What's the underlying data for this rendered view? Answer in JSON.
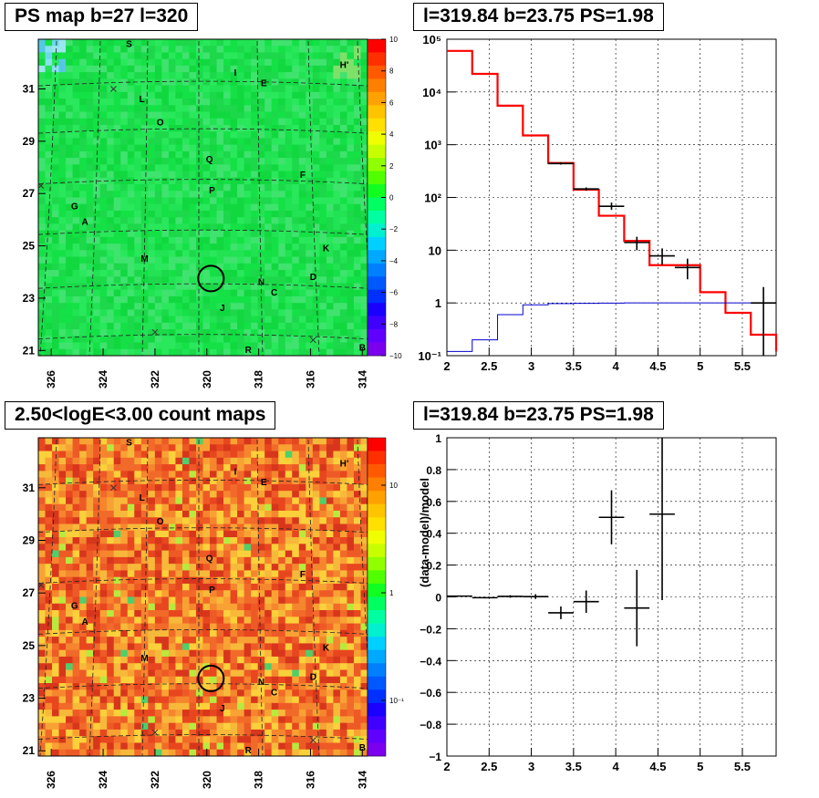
{
  "panels": {
    "ps_map": {
      "title": "PS map b=27 l=320"
    },
    "spectrum": {
      "title": "l=319.84 b=23.75 PS=1.98"
    },
    "count_map": {
      "title": "2.50<logE<3.00 count maps"
    },
    "residual": {
      "title": "l=319.84 b=23.75 PS=1.98"
    }
  },
  "chart_data": [
    {
      "type": "heatmap",
      "panel": "ps_map",
      "title": "PS map b=27 l=320",
      "xlim": [
        326.5,
        313.8
      ],
      "ylim": [
        20.8,
        32.9
      ],
      "x_ticks": [
        "326",
        "324",
        "322",
        "320",
        "318",
        "316",
        "314"
      ],
      "y_ticks": [
        "21",
        "23",
        "25",
        "27",
        "29",
        "31"
      ],
      "colorbar": {
        "range": [
          -10,
          10
        ],
        "ticks": [
          "10",
          "8",
          "6",
          "4",
          "2",
          "0",
          "−2",
          "−4",
          "−6",
          "−8",
          "−10"
        ]
      },
      "source_labels": [
        {
          "t": "S",
          "l": 323.0,
          "b": 32.6
        },
        {
          "t": "I",
          "l": 318.9,
          "b": 31.5
        },
        {
          "t": "H'",
          "l": 314.7,
          "b": 31.8
        },
        {
          "t": "E",
          "l": 317.8,
          "b": 31.1
        },
        {
          "t": "L",
          "l": 322.5,
          "b": 30.5
        },
        {
          "t": "O",
          "l": 321.8,
          "b": 29.6
        },
        {
          "t": "Q",
          "l": 319.9,
          "b": 28.2
        },
        {
          "t": "F",
          "l": 316.3,
          "b": 27.6
        },
        {
          "t": "P",
          "l": 319.8,
          "b": 27.0
        },
        {
          "t": "G",
          "l": 325.1,
          "b": 26.4
        },
        {
          "t": "A",
          "l": 324.7,
          "b": 25.8
        },
        {
          "t": "K",
          "l": 315.4,
          "b": 24.8
        },
        {
          "t": "M",
          "l": 322.4,
          "b": 24.4
        },
        {
          "t": "D",
          "l": 315.9,
          "b": 23.7
        },
        {
          "t": "N",
          "l": 317.9,
          "b": 23.5
        },
        {
          "t": "C",
          "l": 317.4,
          "b": 23.1
        },
        {
          "t": "J",
          "l": 319.4,
          "b": 22.5
        },
        {
          "t": "R",
          "l": 318.4,
          "b": 20.9
        },
        {
          "t": "B",
          "l": 314.0,
          "b": 21.0
        }
      ],
      "marker": {
        "l": 319.84,
        "b": 23.75
      }
    },
    {
      "type": "line",
      "panel": "spectrum",
      "title": "l=319.84 b=23.75 PS=1.98",
      "xlim": [
        2,
        5.9
      ],
      "ylim": [
        0.1,
        100000
      ],
      "yscale": "log",
      "x_ticks": [
        2,
        2.5,
        3,
        3.5,
        4,
        4.5,
        5,
        5.5
      ],
      "bin_edges": [
        2.0,
        2.3,
        2.6,
        2.9,
        3.2,
        3.5,
        3.8,
        4.1,
        4.4,
        4.7,
        5.0,
        5.3,
        5.6,
        5.9
      ],
      "series": [
        {
          "values": [
            60000,
            22000,
            5500,
            1500,
            450,
            140,
            45,
            15,
            5.2,
            5.2,
            1.6,
            0.65,
            0.25,
            0.12
          ],
          "color": "#ff0000"
        },
        {
          "values": [
            0.12,
            0.2,
            0.6,
            0.92,
            0.97,
            0.98,
            0.99,
            1.0,
            1.0,
            1.0,
            1.0,
            1.0,
            1.0,
            1.0
          ],
          "color": "#0000cc"
        }
      ],
      "points": [
        {
          "x": 3.35,
          "y": 440,
          "xerr": 0.15,
          "ylo": 420,
          "yhi": 460
        },
        {
          "x": 3.65,
          "y": 145,
          "xerr": 0.15,
          "ylo": 135,
          "yhi": 155
        },
        {
          "x": 3.95,
          "y": 68,
          "xerr": 0.15,
          "ylo": 58,
          "yhi": 80
        },
        {
          "x": 4.25,
          "y": 14,
          "xerr": 0.15,
          "ylo": 10,
          "yhi": 18
        },
        {
          "x": 4.55,
          "y": 7.8,
          "xerr": 0.15,
          "ylo": 5.3,
          "yhi": 10.8
        },
        {
          "x": 4.85,
          "y": 4.7,
          "xerr": 0.15,
          "ylo": 2.8,
          "yhi": 6.9
        },
        {
          "x": 5.75,
          "y": 1,
          "xerr": 0.15,
          "ylo": 0.1,
          "yhi": 2.0
        }
      ]
    },
    {
      "type": "heatmap",
      "panel": "count_map",
      "title": "2.50<logE<3.00 count maps",
      "xlim": [
        326.5,
        313.8
      ],
      "ylim": [
        20.8,
        32.9
      ],
      "x_ticks": [
        "326",
        "324",
        "322",
        "320",
        "318",
        "316",
        "314"
      ],
      "y_ticks": [
        "21",
        "23",
        "25",
        "27",
        "29",
        "31"
      ],
      "colorbar": {
        "scale": "log",
        "ticks": [
          "10",
          "1",
          "10⁻¹"
        ]
      },
      "marker": {
        "l": 319.84,
        "b": 23.75
      }
    },
    {
      "type": "scatter",
      "panel": "residual",
      "title": "l=319.84 b=23.75 PS=1.98",
      "ylabel": "(data-model)/model",
      "xlim": [
        2,
        5.9
      ],
      "ylim": [
        -1,
        1
      ],
      "x_ticks": [
        2,
        2.5,
        3,
        3.5,
        4,
        4.5,
        5,
        5.5
      ],
      "y_ticks": [
        -1,
        -0.8,
        -0.6,
        -0.4,
        -0.2,
        0,
        0.2,
        0.4,
        0.6,
        0.8,
        1
      ],
      "points": [
        {
          "x": 2.15,
          "y": 0.005,
          "xerr": 0.15,
          "yerr": 0.004
        },
        {
          "x": 2.45,
          "y": -0.005,
          "xerr": 0.15,
          "yerr": 0.005
        },
        {
          "x": 2.75,
          "y": 0.003,
          "xerr": 0.15,
          "yerr": 0.008
        },
        {
          "x": 3.05,
          "y": 0.002,
          "xerr": 0.15,
          "yerr": 0.015
        },
        {
          "x": 3.35,
          "y": -0.1,
          "xerr": 0.15,
          "yerr": 0.04
        },
        {
          "x": 3.65,
          "y": -0.03,
          "xerr": 0.15,
          "yerr": 0.07
        },
        {
          "x": 3.95,
          "y": 0.5,
          "xerr": 0.15,
          "yerr": 0.17
        },
        {
          "x": 4.25,
          "y": -0.07,
          "xerr": 0.15,
          "yerr": 0.24
        },
        {
          "x": 4.55,
          "y": 0.52,
          "xerr": 0.15,
          "ylo": -0.02,
          "yhi": 1.0
        }
      ]
    }
  ]
}
